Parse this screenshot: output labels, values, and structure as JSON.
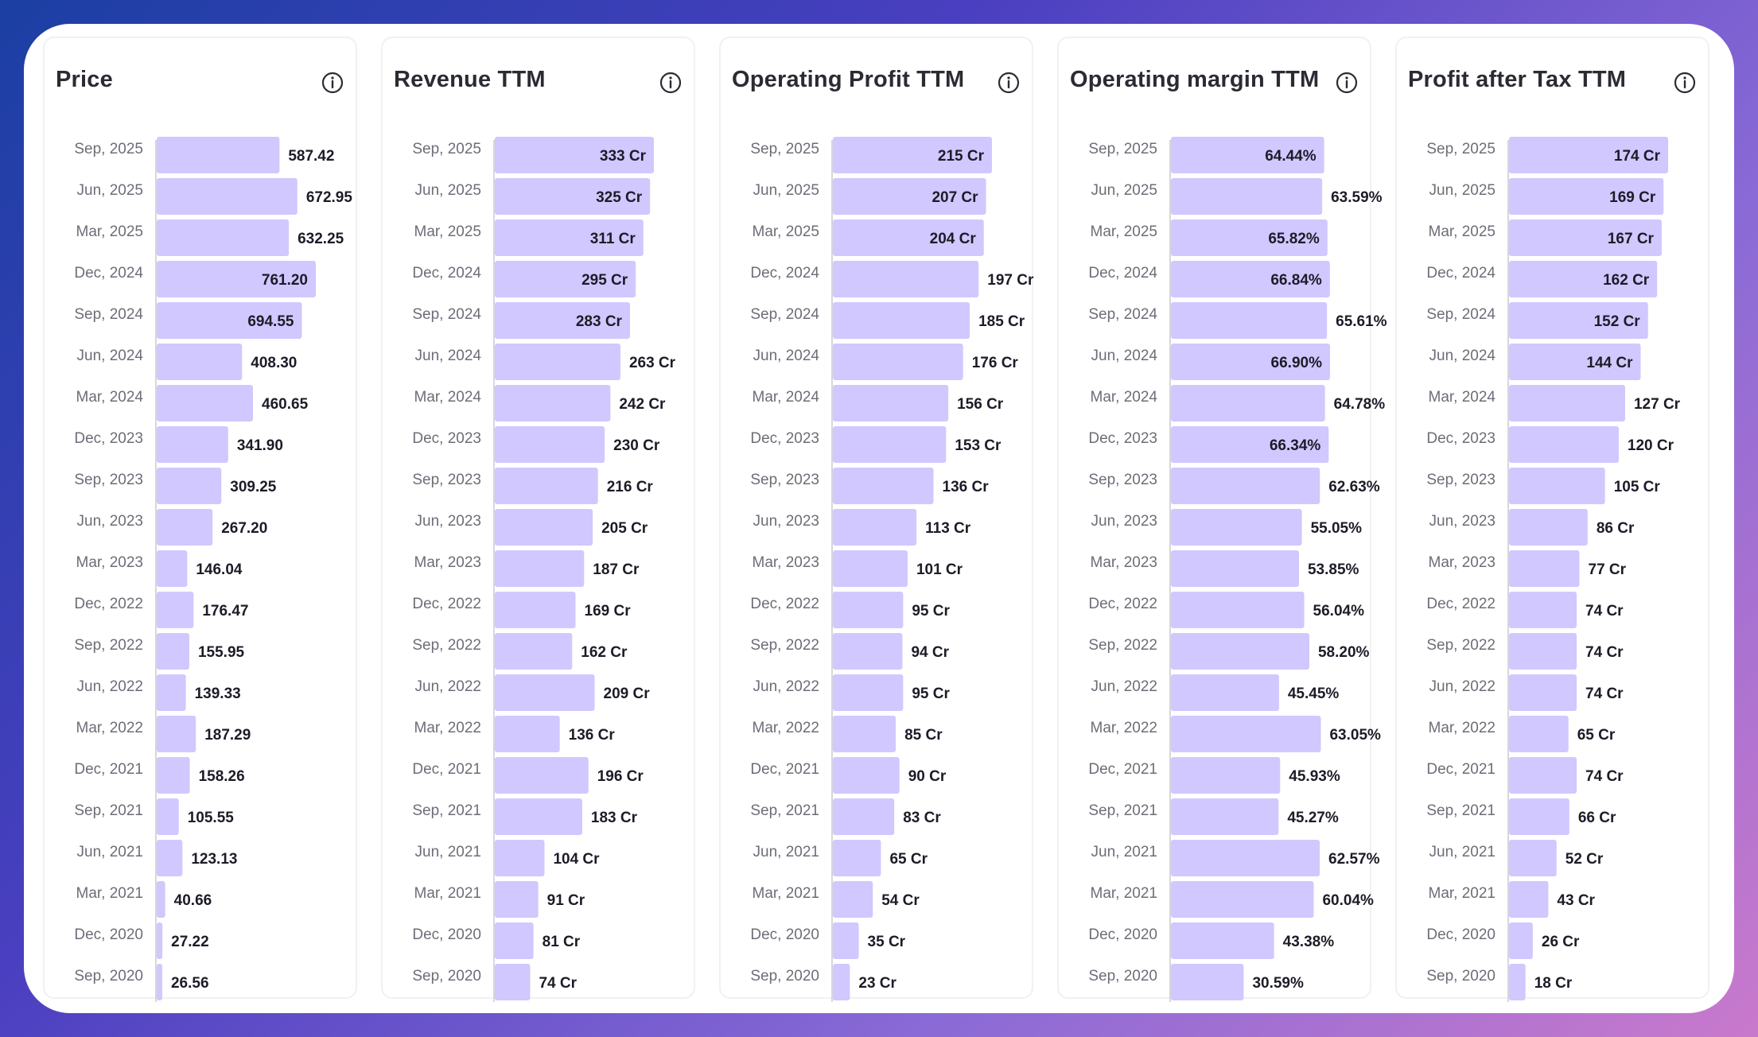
{
  "colors": {
    "bar": "#d1c8ff",
    "text": "#1c1c28",
    "label": "#6d6d78"
  },
  "periods": [
    "Sep, 2025",
    "Jun, 2025",
    "Mar, 2025",
    "Dec, 2024",
    "Sep, 2024",
    "Jun, 2024",
    "Mar, 2024",
    "Dec, 2023",
    "Sep, 2023",
    "Jun, 2023",
    "Mar, 2023",
    "Dec, 2022",
    "Sep, 2022",
    "Jun, 2022",
    "Mar, 2022",
    "Dec, 2021",
    "Sep, 2021",
    "Jun, 2021",
    "Mar, 2021",
    "Dec, 2020",
    "Sep, 2020"
  ],
  "chart_data": [
    {
      "type": "bar",
      "orientation": "horizontal",
      "title": "Price",
      "unit": "",
      "categories": [
        "Sep, 2025",
        "Jun, 2025",
        "Mar, 2025",
        "Dec, 2024",
        "Sep, 2024",
        "Jun, 2024",
        "Mar, 2024",
        "Dec, 2023",
        "Sep, 2023",
        "Jun, 2023",
        "Mar, 2023",
        "Dec, 2022",
        "Sep, 2022",
        "Jun, 2022",
        "Mar, 2022",
        "Dec, 2021",
        "Sep, 2021",
        "Jun, 2021",
        "Mar, 2021",
        "Dec, 2020",
        "Sep, 2020"
      ],
      "values": [
        587.42,
        672.95,
        632.25,
        761.2,
        694.55,
        408.3,
        460.65,
        341.9,
        309.25,
        267.2,
        146.04,
        176.47,
        155.95,
        139.33,
        187.29,
        158.26,
        105.55,
        123.13,
        40.66,
        27.22,
        26.56
      ],
      "labels": [
        "587.42",
        "672.95",
        "632.25",
        "761.20",
        "694.55",
        "408.30",
        "460.65",
        "341.90",
        "309.25",
        "267.20",
        "146.04",
        "176.47",
        "155.95",
        "139.33",
        "187.29",
        "158.26",
        "105.55",
        "123.13",
        "40.66",
        "27.22",
        "26.56"
      ],
      "inside": [
        false,
        false,
        false,
        true,
        true,
        false,
        false,
        false,
        false,
        false,
        false,
        false,
        false,
        false,
        false,
        false,
        false,
        false,
        false,
        false,
        false
      ]
    },
    {
      "type": "bar",
      "orientation": "horizontal",
      "title": "Revenue TTM",
      "unit": "Cr",
      "categories": [
        "Sep, 2025",
        "Jun, 2025",
        "Mar, 2025",
        "Dec, 2024",
        "Sep, 2024",
        "Jun, 2024",
        "Mar, 2024",
        "Dec, 2023",
        "Sep, 2023",
        "Jun, 2023",
        "Mar, 2023",
        "Dec, 2022",
        "Sep, 2022",
        "Jun, 2022",
        "Mar, 2022",
        "Dec, 2021",
        "Sep, 2021",
        "Jun, 2021",
        "Mar, 2021",
        "Dec, 2020",
        "Sep, 2020"
      ],
      "values": [
        333,
        325,
        311,
        295,
        283,
        263,
        242,
        230,
        216,
        205,
        187,
        169,
        162,
        209,
        136,
        196,
        183,
        104,
        91,
        81,
        74
      ],
      "labels": [
        "333 Cr",
        "325 Cr",
        "311 Cr",
        "295 Cr",
        "283 Cr",
        "263 Cr",
        "242 Cr",
        "230 Cr",
        "216 Cr",
        "205 Cr",
        "187 Cr",
        "169 Cr",
        "162 Cr",
        "209 Cr",
        "136 Cr",
        "196 Cr",
        "183 Cr",
        "104 Cr",
        "91 Cr",
        "81 Cr",
        "74 Cr"
      ],
      "inside": [
        true,
        true,
        true,
        true,
        true,
        false,
        false,
        false,
        false,
        false,
        false,
        false,
        false,
        false,
        false,
        false,
        false,
        false,
        false,
        false,
        false
      ]
    },
    {
      "type": "bar",
      "orientation": "horizontal",
      "title": "Operating Profit TTM",
      "unit": "Cr",
      "categories": [
        "Sep, 2025",
        "Jun, 2025",
        "Mar, 2025",
        "Dec, 2024",
        "Sep, 2024",
        "Jun, 2024",
        "Mar, 2024",
        "Dec, 2023",
        "Sep, 2023",
        "Jun, 2023",
        "Mar, 2023",
        "Dec, 2022",
        "Sep, 2022",
        "Jun, 2022",
        "Mar, 2022",
        "Dec, 2021",
        "Sep, 2021",
        "Jun, 2021",
        "Mar, 2021",
        "Dec, 2020",
        "Sep, 2020"
      ],
      "values": [
        215,
        207,
        204,
        197,
        185,
        176,
        156,
        153,
        136,
        113,
        101,
        95,
        94,
        95,
        85,
        90,
        83,
        65,
        54,
        35,
        23
      ],
      "labels": [
        "215 Cr",
        "207 Cr",
        "204 Cr",
        "197 Cr",
        "185 Cr",
        "176 Cr",
        "156 Cr",
        "153 Cr",
        "136 Cr",
        "113 Cr",
        "101 Cr",
        "95 Cr",
        "94 Cr",
        "95 Cr",
        "85 Cr",
        "90 Cr",
        "83 Cr",
        "65 Cr",
        "54 Cr",
        "35 Cr",
        "23 Cr"
      ],
      "inside": [
        true,
        true,
        true,
        false,
        false,
        false,
        false,
        false,
        false,
        false,
        false,
        false,
        false,
        false,
        false,
        false,
        false,
        false,
        false,
        false,
        false
      ]
    },
    {
      "type": "bar",
      "orientation": "horizontal",
      "title": "Operating margin TTM",
      "unit": "%",
      "categories": [
        "Sep, 2025",
        "Jun, 2025",
        "Mar, 2025",
        "Dec, 2024",
        "Sep, 2024",
        "Jun, 2024",
        "Mar, 2024",
        "Dec, 2023",
        "Sep, 2023",
        "Jun, 2023",
        "Mar, 2023",
        "Dec, 2022",
        "Sep, 2022",
        "Jun, 2022",
        "Mar, 2022",
        "Dec, 2021",
        "Sep, 2021",
        "Jun, 2021",
        "Mar, 2021",
        "Dec, 2020",
        "Sep, 2020"
      ],
      "values": [
        64.44,
        63.59,
        65.82,
        66.84,
        65.61,
        66.9,
        64.78,
        66.34,
        62.63,
        55.05,
        53.85,
        56.04,
        58.2,
        45.45,
        63.05,
        45.93,
        45.27,
        62.57,
        60.04,
        43.38,
        30.59
      ],
      "labels": [
        "64.44%",
        "63.59%",
        "65.82%",
        "66.84%",
        "65.61%",
        "66.90%",
        "64.78%",
        "66.34%",
        "62.63%",
        "55.05%",
        "53.85%",
        "56.04%",
        "58.20%",
        "45.45%",
        "63.05%",
        "45.93%",
        "45.27%",
        "62.57%",
        "60.04%",
        "43.38%",
        "30.59%"
      ],
      "inside": [
        true,
        false,
        true,
        true,
        false,
        true,
        false,
        true,
        false,
        false,
        false,
        false,
        false,
        false,
        false,
        false,
        false,
        false,
        false,
        false,
        false
      ]
    },
    {
      "type": "bar",
      "orientation": "horizontal",
      "title": "Profit after Tax TTM",
      "unit": "Cr",
      "categories": [
        "Sep, 2025",
        "Jun, 2025",
        "Mar, 2025",
        "Dec, 2024",
        "Sep, 2024",
        "Jun, 2024",
        "Mar, 2024",
        "Dec, 2023",
        "Sep, 2023",
        "Jun, 2023",
        "Mar, 2023",
        "Dec, 2022",
        "Sep, 2022",
        "Jun, 2022",
        "Mar, 2022",
        "Dec, 2021",
        "Sep, 2021",
        "Jun, 2021",
        "Mar, 2021",
        "Dec, 2020",
        "Sep, 2020"
      ],
      "values": [
        174,
        169,
        167,
        162,
        152,
        144,
        127,
        120,
        105,
        86,
        77,
        74,
        74,
        74,
        65,
        74,
        66,
        52,
        43,
        26,
        18
      ],
      "labels": [
        "174 Cr",
        "169 Cr",
        "167 Cr",
        "162 Cr",
        "152 Cr",
        "144 Cr",
        "127 Cr",
        "120 Cr",
        "105 Cr",
        "86 Cr",
        "77 Cr",
        "74 Cr",
        "74 Cr",
        "74 Cr",
        "65 Cr",
        "74 Cr",
        "66 Cr",
        "52 Cr",
        "43 Cr",
        "26 Cr",
        "18 Cr"
      ],
      "inside": [
        true,
        true,
        true,
        true,
        true,
        true,
        false,
        false,
        false,
        false,
        false,
        false,
        false,
        false,
        false,
        false,
        false,
        false,
        false,
        false,
        false
      ]
    }
  ]
}
